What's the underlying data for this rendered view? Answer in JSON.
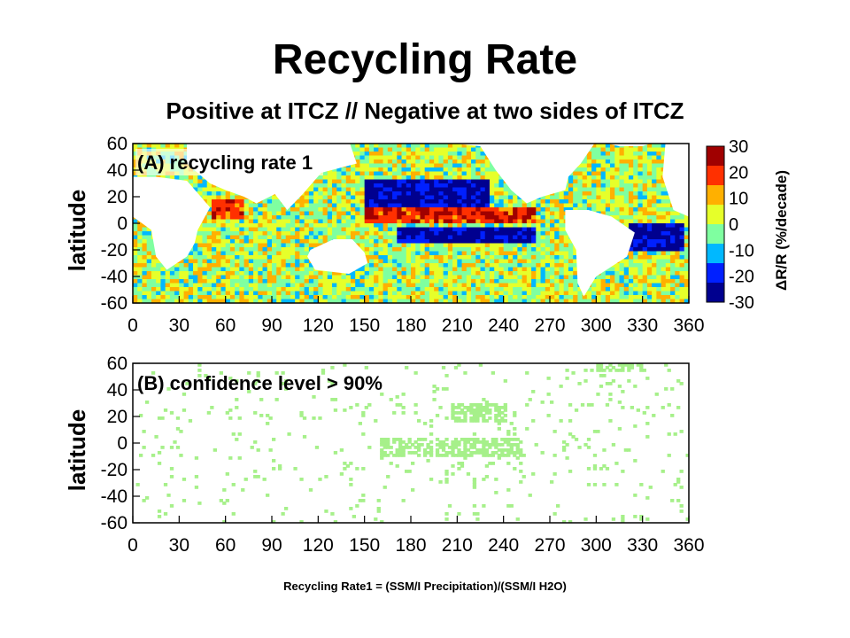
{
  "slide": {
    "title": "Recycling Rate",
    "subtitle": "Positive at ITCZ  // Negative at two sides of ITCZ",
    "footer": "Recycling Rate1 = (SSM/I Precipitation)/(SSM/I H2O)"
  },
  "colors": {
    "land_fill": "#ffffff",
    "significance_fill": "#a6f08a",
    "colormap": [
      "#00008f",
      "#0020ff",
      "#00b8ff",
      "#7fffa0",
      "#e6ff2a",
      "#ffb000",
      "#ff3000",
      "#a00000"
    ]
  },
  "chart_data": [
    {
      "type": "heatmap",
      "panel_label": "(A) recycling rate 1",
      "ylabel": "latitude",
      "x_ticks": [
        "0",
        "30",
        "60",
        "90",
        "120",
        "150",
        "180",
        "210",
        "240",
        "270",
        "300",
        "330",
        "360"
      ],
      "y_ticks": [
        "60",
        "40",
        "20",
        "0",
        "-20",
        "-40",
        "-60"
      ],
      "xlim": [
        0,
        360
      ],
      "ylim": [
        -60,
        60
      ],
      "colorbar": {
        "label": "ΔR/R (%/decade)",
        "ticks": [
          "30",
          "20",
          "10",
          "0",
          "-10",
          "-20",
          "-30"
        ],
        "range": [
          -30,
          30
        ]
      },
      "patterns": [
        {
          "lon": [
            150,
            260
          ],
          "lat": [
            3,
            12
          ],
          "value": 20,
          "note": "positive ITCZ band"
        },
        {
          "lon": [
            150,
            230
          ],
          "lat": [
            15,
            35
          ],
          "value": -25,
          "note": "negative north of ITCZ"
        },
        {
          "lon": [
            170,
            260
          ],
          "lat": [
            -12,
            -3
          ],
          "value": -25,
          "note": "negative south of ITCZ"
        },
        {
          "lon": [
            320,
            355
          ],
          "lat": [
            -20,
            0
          ],
          "value": -25,
          "note": "negative south Atlantic"
        },
        {
          "lon": [
            50,
            70
          ],
          "lat": [
            5,
            20
          ],
          "value": 20,
          "note": "positive Arabian Sea"
        }
      ]
    },
    {
      "type": "heatmap",
      "panel_label": "(B) confidence level > 90%",
      "ylabel": "latitude",
      "x_ticks": [
        "0",
        "30",
        "60",
        "90",
        "120",
        "150",
        "180",
        "210",
        "240",
        "270",
        "300",
        "330",
        "360"
      ],
      "y_ticks": [
        "60",
        "40",
        "20",
        "0",
        "-20",
        "-40",
        "-60"
      ],
      "xlim": [
        0,
        360
      ],
      "ylim": [
        -60,
        60
      ],
      "significant_regions": [
        {
          "lon": [
            205,
            240
          ],
          "lat": [
            18,
            30
          ]
        },
        {
          "lon": [
            160,
            250
          ],
          "lat": [
            -8,
            5
          ]
        },
        {
          "lon": [
            300,
            330
          ],
          "lat": [
            55,
            60
          ]
        }
      ]
    }
  ]
}
